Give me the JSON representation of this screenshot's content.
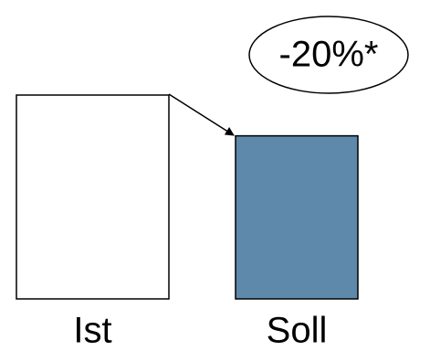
{
  "chart_data": {
    "type": "bar",
    "categories": [
      "Ist",
      "Soll"
    ],
    "values": [
      100,
      80
    ],
    "colors": [
      "#ffffff",
      "#5e89aa"
    ],
    "annotation": "-20%*"
  }
}
